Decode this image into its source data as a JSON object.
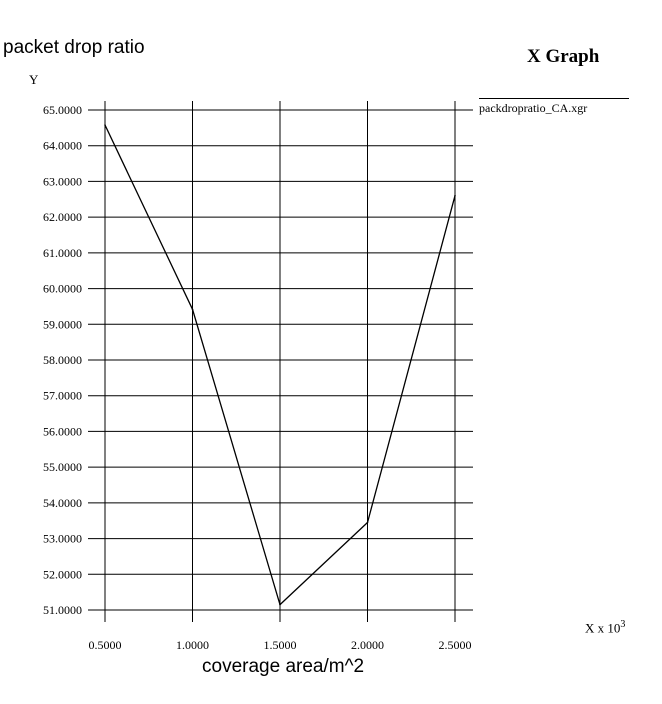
{
  "page_title": "packet drop ratio",
  "graph_title": "X Graph",
  "y_axis_unit": "Y",
  "x_axis_unit": {
    "base": "X x 10",
    "exponent": "3"
  },
  "x_axis_label": "coverage area/m^2",
  "legend": {
    "label": "packdropratio_CA.xgr"
  },
  "colors": {
    "line": "#000000",
    "grid": "#000000",
    "background": "#ffffff"
  },
  "chart_data": {
    "type": "line",
    "title": "X Graph",
    "xlabel": "coverage area/m^2",
    "ylabel": "Y",
    "x_ticks": [
      0.5,
      1.0,
      1.5,
      2.0,
      2.5
    ],
    "x_tick_labels": [
      "0.5000",
      "1.0000",
      "1.5000",
      "2.0000",
      "2.5000"
    ],
    "y_ticks": [
      51,
      52,
      53,
      54,
      55,
      56,
      57,
      58,
      59,
      60,
      61,
      62,
      63,
      64,
      65
    ],
    "y_tick_labels": [
      "51.0000",
      "52.0000",
      "53.0000",
      "54.0000",
      "55.0000",
      "56.0000",
      "57.0000",
      "58.0000",
      "59.0000",
      "60.0000",
      "61.0000",
      "62.0000",
      "63.0000",
      "64.0000",
      "65.0000"
    ],
    "xlim": [
      0.5,
      2.5
    ],
    "ylim": [
      51,
      65
    ],
    "grid": true,
    "series": [
      {
        "name": "packdropratio_CA.xgr",
        "x": [
          0.5,
          1.0,
          1.5,
          2.0,
          2.5
        ],
        "y": [
          64.58,
          59.42,
          51.15,
          53.45,
          62.6
        ]
      }
    ]
  }
}
